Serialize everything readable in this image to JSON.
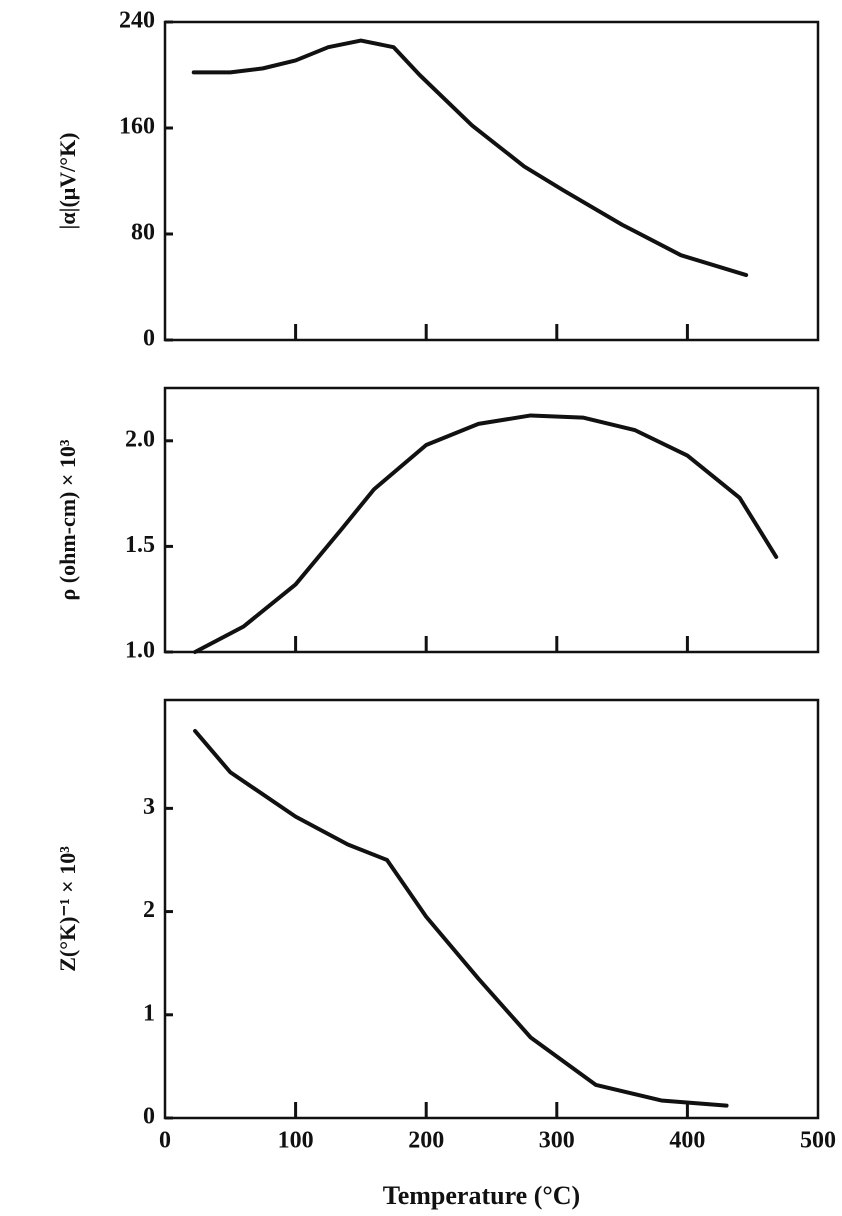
{
  "chart_data": [
    {
      "type": "line",
      "ylabel": "|α|(μV/°K)",
      "x": [
        22,
        50,
        75,
        100,
        125,
        150,
        175,
        195,
        235,
        275,
        305,
        350,
        395,
        445
      ],
      "values": [
        202,
        202,
        205,
        211,
        221,
        226,
        221,
        200,
        162,
        131,
        113,
        87,
        64,
        49
      ],
      "color": "#111111",
      "xlim": [
        0,
        500
      ],
      "ylim": [
        0,
        240
      ],
      "yticks": [
        0,
        80,
        160,
        240
      ]
    },
    {
      "type": "line",
      "ylabel": "ρ (ohm-cm) × 10³",
      "x": [
        23,
        60,
        100,
        135,
        160,
        200,
        240,
        280,
        320,
        360,
        400,
        440,
        468
      ],
      "values": [
        1.0,
        1.12,
        1.32,
        1.58,
        1.77,
        1.98,
        2.08,
        2.12,
        2.11,
        2.05,
        1.93,
        1.73,
        1.45
      ],
      "color": "#111111",
      "xlim": [
        0,
        500
      ],
      "ylim": [
        1.0,
        2.25
      ],
      "yticks": [
        {
          "value": 1,
          "label": "1.0"
        },
        1.5,
        {
          "value": 2,
          "label": "2.0"
        }
      ]
    },
    {
      "type": "line",
      "ylabel": "Z(°K)⁻¹ × 10³",
      "xlabel": "Temperature (°C)",
      "x": [
        23,
        50,
        100,
        140,
        170,
        200,
        240,
        280,
        330,
        380,
        430
      ],
      "values": [
        3.75,
        3.35,
        2.92,
        2.65,
        2.5,
        1.95,
        1.35,
        0.78,
        0.32,
        0.17,
        0.12
      ],
      "color": "#111111",
      "xlim": [
        0,
        500
      ],
      "ylim": [
        0,
        4.05
      ],
      "xticks": [
        0,
        100,
        200,
        300,
        400,
        500
      ],
      "yticks": [
        0,
        1,
        2,
        3
      ]
    }
  ]
}
